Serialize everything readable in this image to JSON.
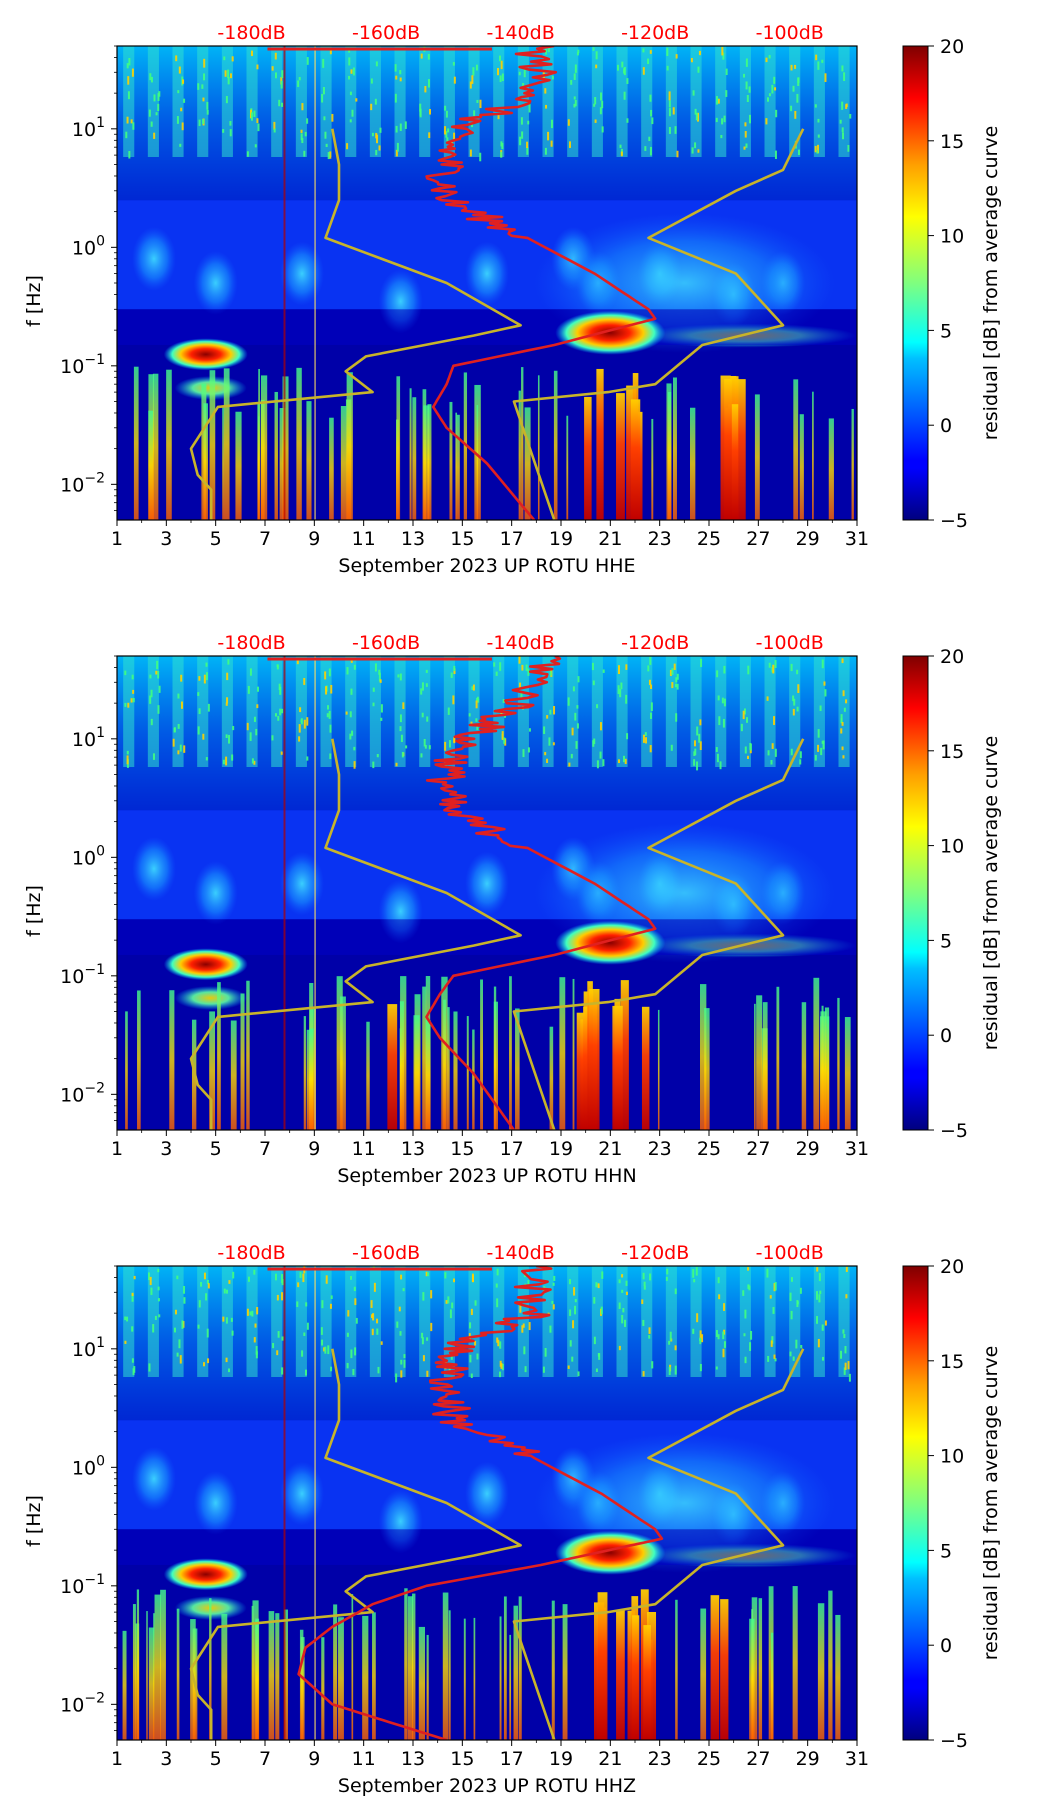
{
  "figure": {
    "colors": {
      "ppsd_curve": "#e02020",
      "noise_model": "#c8b42a",
      "db_labels": "#ff0000",
      "background": "#ffffff"
    },
    "colormap": "jet",
    "colorbar": {
      "label": "residual [dB] from average curve",
      "range": [
        -5,
        20
      ],
      "ticks": [
        "20",
        "15",
        "10",
        "5",
        "0",
        "−5"
      ]
    },
    "x_ticks": [
      "1",
      "3",
      "5",
      "7",
      "9",
      "11",
      "13",
      "15",
      "17",
      "19",
      "21",
      "23",
      "25",
      "27",
      "29",
      "31"
    ],
    "y_ticks": [
      {
        "base": "10",
        "exp": "1"
      },
      {
        "base": "10",
        "exp": "0"
      },
      {
        "base": "10",
        "exp": "−1"
      },
      {
        "base": "10",
        "exp": "−2"
      }
    ],
    "ylabel": "f [Hz]",
    "db_labels": [
      "-180dB",
      "-160dB",
      "-140dB",
      "-120dB",
      "-100dB"
    ]
  },
  "chart_data": [
    {
      "type": "heatmap",
      "channel": "HHE",
      "xlabel": "September 2023 UP ROTU  HHE",
      "ylabel": "f [Hz]",
      "xlim": [
        1,
        31
      ],
      "ylim_hz": [
        0.005,
        50
      ],
      "color_range_db": [
        -5,
        20
      ],
      "top_axis_db": [
        -180,
        -160,
        -140,
        -120,
        -100
      ],
      "ppsd_median_db_vs_freq": [
        [
          50,
          -138
        ],
        [
          20,
          -137
        ],
        [
          10,
          -150
        ],
        [
          5,
          -151
        ],
        [
          2.5,
          -151
        ],
        [
          1.2,
          -139
        ],
        [
          0.6,
          -129
        ],
        [
          0.3,
          -121
        ],
        [
          0.25,
          -120
        ],
        [
          0.15,
          -135
        ],
        [
          0.1,
          -150
        ],
        [
          0.07,
          -151
        ],
        [
          0.045,
          -153
        ],
        [
          0.03,
          -151
        ],
        [
          0.015,
          -145
        ],
        [
          0.005,
          -138
        ]
      ],
      "noise_model_db_vs_freq": [
        [
          10,
          -168
        ],
        [
          5,
          -167
        ],
        [
          2.5,
          -167
        ],
        [
          1.2,
          -169
        ],
        [
          0.5,
          -151
        ],
        [
          0.22,
          -140
        ],
        [
          0.18,
          -147
        ],
        [
          0.12,
          -163
        ],
        [
          0.09,
          -166
        ],
        [
          0.06,
          -162
        ],
        [
          0.045,
          -185
        ],
        [
          0.03,
          -187
        ],
        [
          0.02,
          -189
        ],
        [
          0.012,
          -188
        ],
        [
          0.009,
          -186
        ],
        [
          0.005,
          -186
        ]
      ],
      "noise_model_high_db_vs_freq": [
        [
          10,
          -98
        ],
        [
          4.5,
          -101
        ],
        [
          3,
          -108
        ],
        [
          1.2,
          -121
        ],
        [
          0.6,
          -108
        ],
        [
          0.22,
          -101
        ],
        [
          0.15,
          -113
        ],
        [
          0.07,
          -120
        ],
        [
          0.06,
          -127
        ],
        [
          0.05,
          -141
        ],
        [
          0.005,
          -135
        ]
      ]
    },
    {
      "type": "heatmap",
      "channel": "HHN",
      "xlabel": "September 2023 UP ROTU  HHN",
      "ylabel": "f [Hz]",
      "xlim": [
        1,
        31
      ],
      "ylim_hz": [
        0.005,
        50
      ],
      "color_range_db": [
        -5,
        20
      ],
      "top_axis_db": [
        -180,
        -160,
        -140,
        -120,
        -100
      ],
      "ppsd_median_db_vs_freq": [
        [
          50,
          -135
        ],
        [
          20,
          -140
        ],
        [
          10,
          -148
        ],
        [
          5,
          -151
        ],
        [
          2.5,
          -151
        ],
        [
          1.2,
          -139
        ],
        [
          0.6,
          -129
        ],
        [
          0.3,
          -121
        ],
        [
          0.25,
          -120
        ],
        [
          0.15,
          -135
        ],
        [
          0.1,
          -150
        ],
        [
          0.07,
          -152
        ],
        [
          0.045,
          -154
        ],
        [
          0.03,
          -152
        ],
        [
          0.015,
          -147
        ],
        [
          0.005,
          -141
        ]
      ],
      "noise_model_db_vs_freq": [
        [
          10,
          -168
        ],
        [
          5,
          -167
        ],
        [
          2.5,
          -167
        ],
        [
          1.2,
          -169
        ],
        [
          0.5,
          -151
        ],
        [
          0.22,
          -140
        ],
        [
          0.18,
          -147
        ],
        [
          0.12,
          -163
        ],
        [
          0.09,
          -166
        ],
        [
          0.06,
          -162
        ],
        [
          0.045,
          -185
        ],
        [
          0.03,
          -187
        ],
        [
          0.02,
          -189
        ],
        [
          0.012,
          -188
        ],
        [
          0.009,
          -186
        ],
        [
          0.005,
          -186
        ]
      ],
      "noise_model_high_db_vs_freq": [
        [
          10,
          -98
        ],
        [
          4.5,
          -101
        ],
        [
          3,
          -108
        ],
        [
          1.2,
          -121
        ],
        [
          0.6,
          -108
        ],
        [
          0.22,
          -101
        ],
        [
          0.15,
          -113
        ],
        [
          0.07,
          -120
        ],
        [
          0.06,
          -127
        ],
        [
          0.05,
          -141
        ],
        [
          0.005,
          -135
        ]
      ]
    },
    {
      "type": "heatmap",
      "channel": "HHZ",
      "xlabel": "September 2023 UP ROTU  HHZ",
      "ylabel": "f [Hz]",
      "xlim": [
        1,
        31
      ],
      "ylim_hz": [
        0.005,
        50
      ],
      "color_range_db": [
        -5,
        20
      ],
      "top_axis_db": [
        -180,
        -160,
        -140,
        -120,
        -100
      ],
      "ppsd_median_db_vs_freq": [
        [
          50,
          -138
        ],
        [
          20,
          -138
        ],
        [
          10,
          -150
        ],
        [
          5,
          -151
        ],
        [
          2.5,
          -150
        ],
        [
          1.2,
          -138
        ],
        [
          0.6,
          -128
        ],
        [
          0.3,
          -120
        ],
        [
          0.25,
          -119
        ],
        [
          0.15,
          -137
        ],
        [
          0.1,
          -154
        ],
        [
          0.07,
          -162
        ],
        [
          0.045,
          -168
        ],
        [
          0.03,
          -172
        ],
        [
          0.018,
          -173
        ],
        [
          0.01,
          -168
        ],
        [
          0.005,
          -151
        ]
      ],
      "noise_model_db_vs_freq": [
        [
          10,
          -168
        ],
        [
          5,
          -167
        ],
        [
          2.5,
          -167
        ],
        [
          1.2,
          -169
        ],
        [
          0.5,
          -151
        ],
        [
          0.22,
          -140
        ],
        [
          0.18,
          -147
        ],
        [
          0.12,
          -163
        ],
        [
          0.09,
          -166
        ],
        [
          0.06,
          -162
        ],
        [
          0.045,
          -185
        ],
        [
          0.03,
          -187
        ],
        [
          0.02,
          -189
        ],
        [
          0.012,
          -188
        ],
        [
          0.009,
          -186
        ],
        [
          0.005,
          -186
        ]
      ],
      "noise_model_high_db_vs_freq": [
        [
          10,
          -98
        ],
        [
          4.5,
          -101
        ],
        [
          3,
          -108
        ],
        [
          1.2,
          -121
        ],
        [
          0.6,
          -108
        ],
        [
          0.22,
          -101
        ],
        [
          0.15,
          -113
        ],
        [
          0.07,
          -120
        ],
        [
          0.06,
          -127
        ],
        [
          0.05,
          -141
        ],
        [
          0.005,
          -135
        ]
      ]
    }
  ]
}
